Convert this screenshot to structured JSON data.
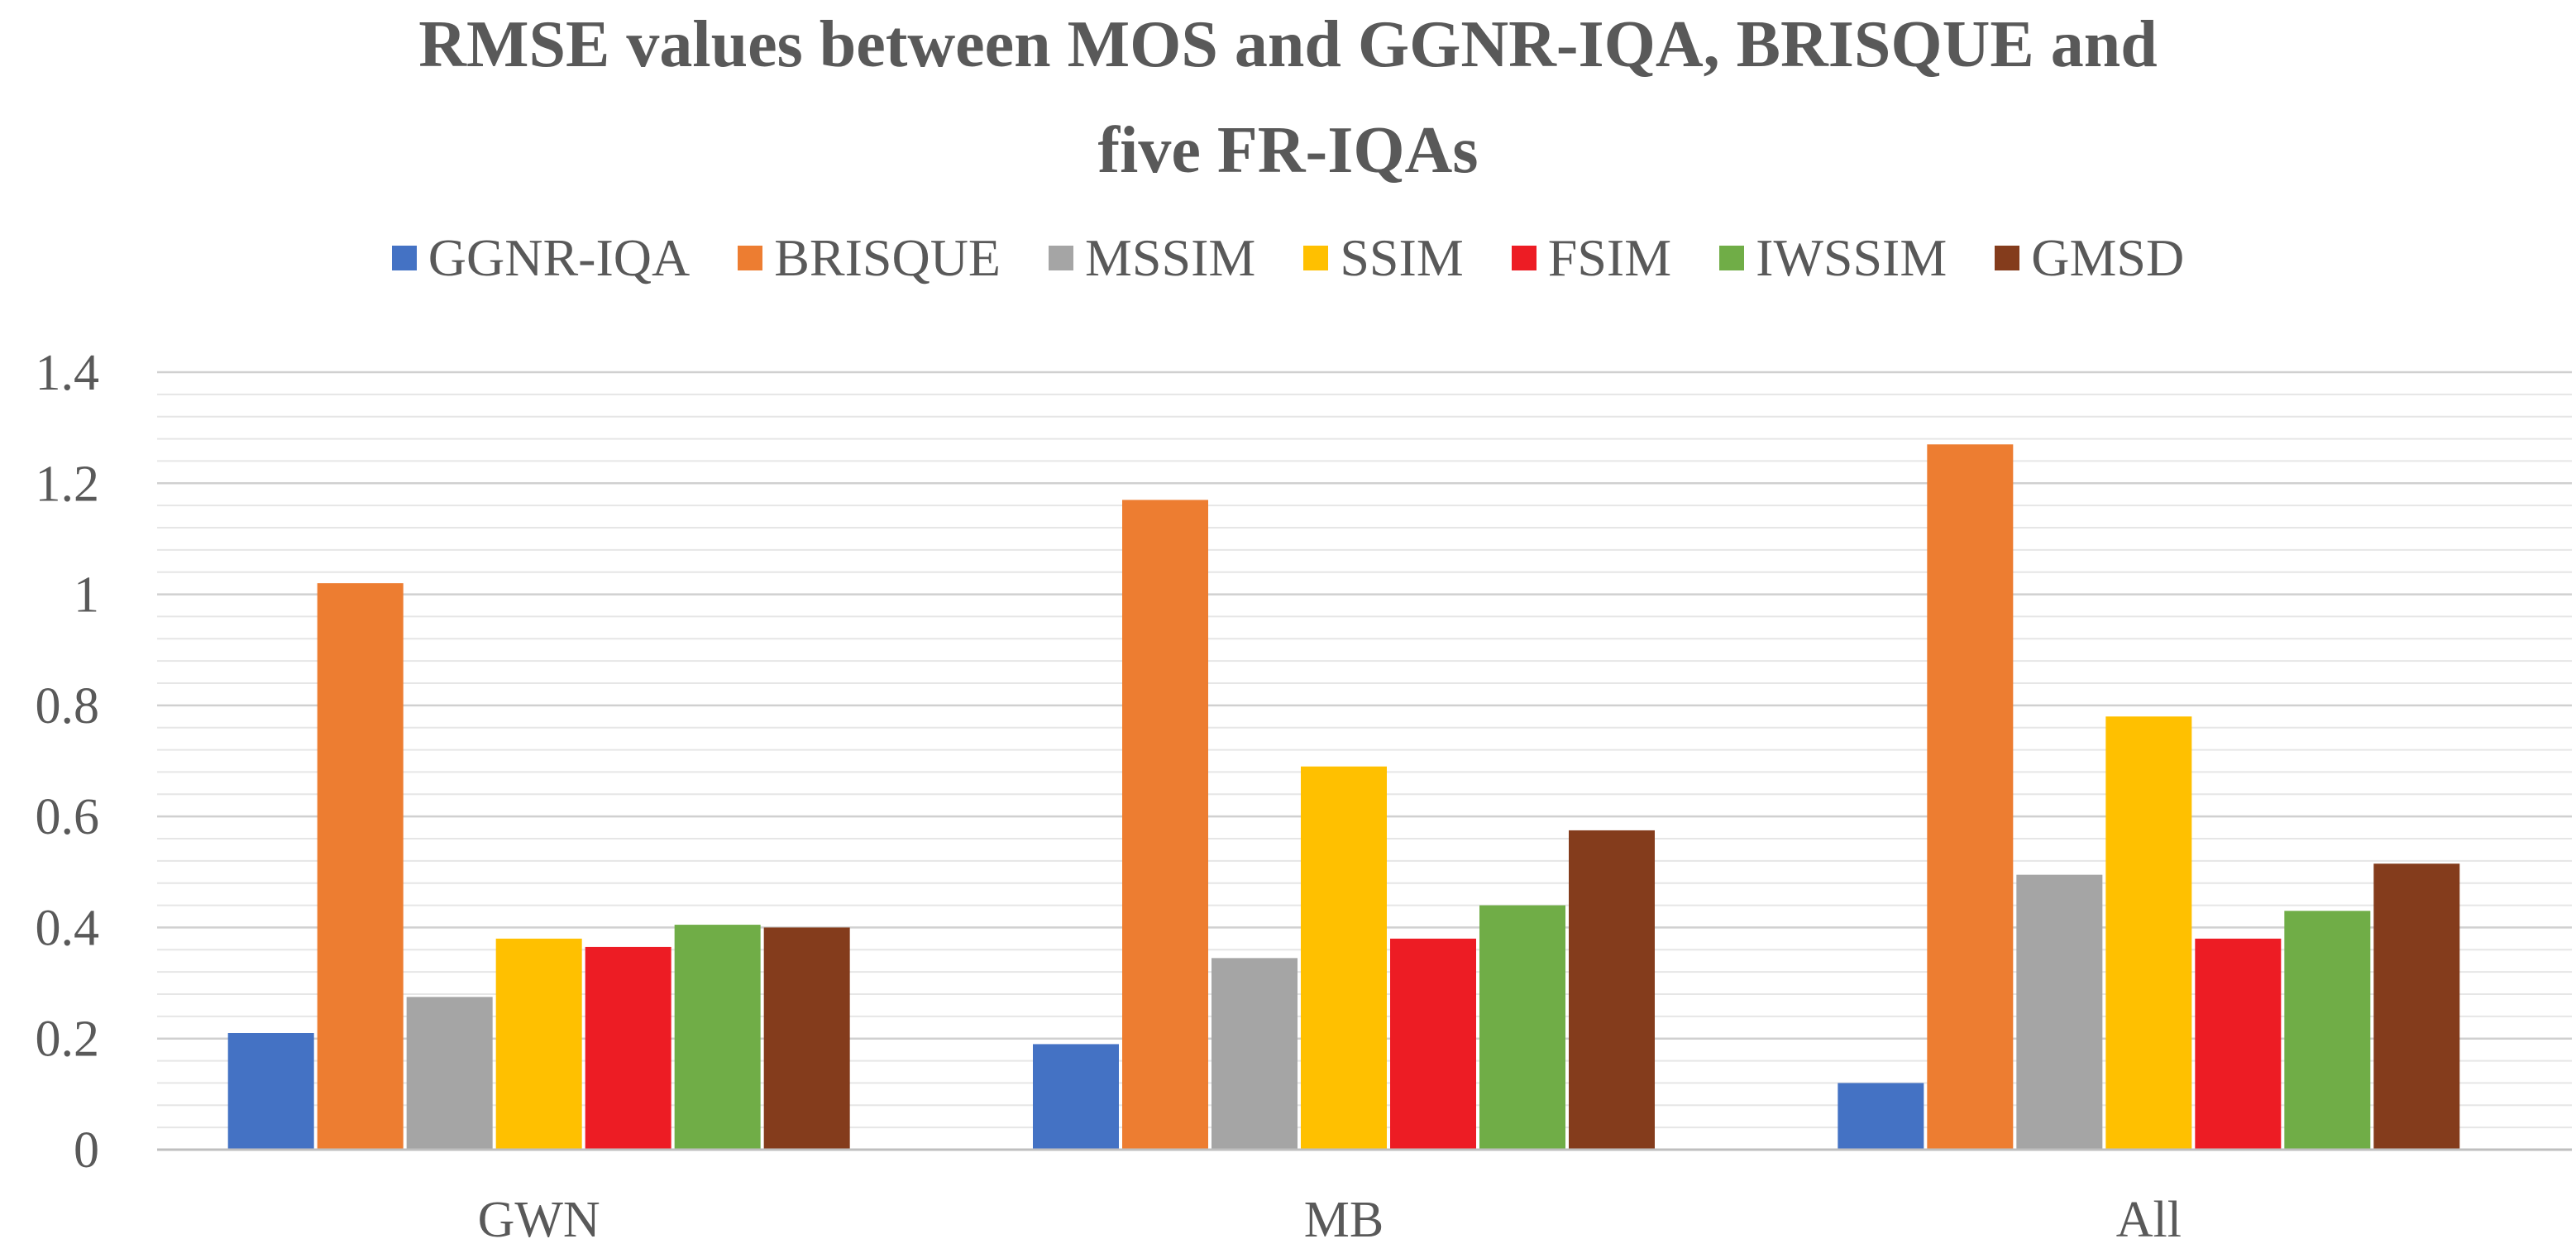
{
  "chart_data": {
    "type": "bar",
    "title_line1": "RMSE  values between MOS and GGNR-IQA, BRISQUE and",
    "title_line2": "five FR-IQAs",
    "categories": [
      "GWN",
      "MB",
      "All"
    ],
    "series": [
      {
        "name": "GGNR-IQA",
        "color": "#4472C4",
        "values": [
          0.21,
          0.19,
          0.12
        ]
      },
      {
        "name": "BRISQUE",
        "color": "#ED7D31",
        "values": [
          1.02,
          1.17,
          1.27
        ]
      },
      {
        "name": "MSSIM",
        "color": "#A5A5A5",
        "values": [
          0.275,
          0.345,
          0.495
        ]
      },
      {
        "name": "SSIM",
        "color": "#FFC000",
        "values": [
          0.38,
          0.69,
          0.78
        ]
      },
      {
        "name": "FSIM",
        "color": "#ED1C24",
        "values": [
          0.365,
          0.38,
          0.38
        ]
      },
      {
        "name": "IWSSIM",
        "color": "#70AD47",
        "values": [
          0.405,
          0.44,
          0.43
        ]
      },
      {
        "name": "GMSD",
        "color": "#843C1C",
        "values": [
          0.4,
          0.575,
          0.515
        ]
      }
    ],
    "ylim": [
      0,
      1.4
    ],
    "yticks": [
      {
        "value": 0,
        "label": "0"
      },
      {
        "value": 0.2,
        "label": "0.2"
      },
      {
        "value": 0.4,
        "label": "0.4"
      },
      {
        "value": 0.6,
        "label": "0.6"
      },
      {
        "value": 0.8,
        "label": "0.8"
      },
      {
        "value": 1.0,
        "label": "1"
      },
      {
        "value": 1.2,
        "label": "1.2"
      },
      {
        "value": 1.4,
        "label": "1.4"
      }
    ],
    "minor_grid_step": 0.04,
    "legend_position": "top",
    "grid": true
  }
}
